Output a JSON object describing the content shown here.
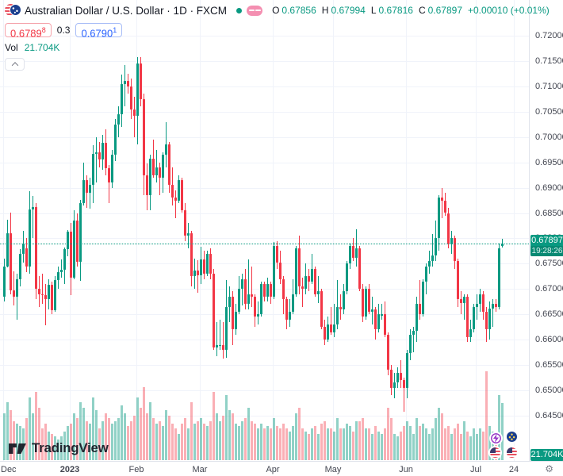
{
  "header": {
    "title": "Australian Dollar / U.S. Dollar · 1D · FXCM",
    "ohlc": {
      "o_label": "O",
      "o": "0.67856",
      "h_label": "H",
      "h": "0.67994",
      "l_label": "L",
      "l": "0.67816",
      "c_label": "C",
      "c": "0.67897",
      "change": "+0.00010 (+0.01%)"
    },
    "bid": {
      "main": "0.6789",
      "sup": "8"
    },
    "spread": "0.3",
    "ask": {
      "main": "0.6790",
      "sup": "1"
    },
    "vol_label": "Vol",
    "vol_value": "21.704K"
  },
  "watermark": "TradingView",
  "price_axis": {
    "last_price": "0.67897",
    "countdown": "19:28:26",
    "volume_badge": "21.704K"
  },
  "colors": {
    "up": "#089981",
    "down": "#f23645",
    "ask": "#2962ff",
    "grid": "#f0f3fa",
    "axis_text": "#434651",
    "vol_up": "rgba(8,153,129,0.45)",
    "vol_down": "rgba(242,54,69,0.4)"
  },
  "chart_data": {
    "type": "candlestick",
    "title": "Australian Dollar / U.S. Dollar",
    "symbol": "AUD/USD",
    "timeframe": "1D",
    "exchange": "FXCM",
    "legend": "Vol",
    "last_price": 0.67897,
    "last_volume": "21.704K",
    "ylim": [
      0.6458,
      0.7158
    ],
    "grid": true,
    "y_ticks": [
      0.72,
      0.715,
      0.71,
      0.705,
      0.7,
      0.695,
      0.69,
      0.685,
      0.68,
      0.675,
      0.67,
      0.665,
      0.66,
      0.655,
      0.65,
      0.645
    ],
    "x_ticks": [
      {
        "label": "Dec",
        "index": 0
      },
      {
        "label": "2023",
        "index": 21,
        "major": true
      },
      {
        "label": "Feb",
        "index": 42
      },
      {
        "label": "Mar",
        "index": 62
      },
      {
        "label": "Apr",
        "index": 85
      },
      {
        "label": "May",
        "index": 104
      },
      {
        "label": "Jun",
        "index": 127
      },
      {
        "label": "Jul",
        "index": 149
      },
      {
        "label": "24",
        "index": 161
      }
    ],
    "candles": [
      [
        0.6685,
        0.676,
        0.6676,
        0.6745,
        18
      ],
      [
        0.6745,
        0.6836,
        0.6742,
        0.681,
        22
      ],
      [
        0.681,
        0.6851,
        0.669,
        0.6698,
        19
      ],
      [
        0.6698,
        0.6735,
        0.6667,
        0.6685,
        15
      ],
      [
        0.6685,
        0.673,
        0.664,
        0.672,
        14
      ],
      [
        0.672,
        0.6778,
        0.6705,
        0.677,
        13
      ],
      [
        0.677,
        0.6815,
        0.6752,
        0.679,
        12
      ],
      [
        0.678,
        0.68,
        0.6733,
        0.6745,
        16
      ],
      [
        0.6745,
        0.6893,
        0.673,
        0.6857,
        24
      ],
      [
        0.6857,
        0.6884,
        0.68,
        0.6862,
        18
      ],
      [
        0.6862,
        0.687,
        0.668,
        0.67,
        26
      ],
      [
        0.67,
        0.6725,
        0.6665,
        0.669,
        20
      ],
      [
        0.669,
        0.673,
        0.667,
        0.6688,
        12
      ],
      [
        0.6688,
        0.671,
        0.6629,
        0.668,
        14
      ],
      [
        0.668,
        0.672,
        0.666,
        0.6708,
        11
      ],
      [
        0.6708,
        0.6715,
        0.665,
        0.6658,
        10
      ],
      [
        0.6658,
        0.6725,
        0.6655,
        0.6718,
        9
      ],
      [
        0.6718,
        0.6745,
        0.67,
        0.6733,
        8
      ],
      [
        0.6733,
        0.6758,
        0.6722,
        0.6738,
        9
      ],
      [
        0.6738,
        0.6782,
        0.671,
        0.6778,
        11
      ],
      [
        0.6778,
        0.6816,
        0.6765,
        0.6813,
        13
      ],
      [
        0.6813,
        0.683,
        0.6688,
        0.6722,
        14
      ],
      [
        0.6722,
        0.6856,
        0.672,
        0.6835,
        18
      ],
      [
        0.6835,
        0.685,
        0.6745,
        0.6754,
        16
      ],
      [
        0.6754,
        0.6876,
        0.6716,
        0.687,
        22
      ],
      [
        0.687,
        0.695,
        0.6865,
        0.6915,
        20
      ],
      [
        0.6915,
        0.6925,
        0.686,
        0.689,
        15
      ],
      [
        0.689,
        0.692,
        0.6858,
        0.6905,
        14
      ],
      [
        0.6905,
        0.6984,
        0.687,
        0.6966,
        24
      ],
      [
        0.6966,
        0.7,
        0.691,
        0.697,
        19
      ],
      [
        0.697,
        0.699,
        0.694,
        0.6955,
        12
      ],
      [
        0.6955,
        0.7005,
        0.6935,
        0.6988,
        15
      ],
      [
        0.6988,
        0.7015,
        0.6925,
        0.6938,
        18
      ],
      [
        0.6938,
        0.6945,
        0.687,
        0.691,
        16
      ],
      [
        0.691,
        0.6975,
        0.69,
        0.6965,
        14
      ],
      [
        0.6965,
        0.7035,
        0.6953,
        0.7025,
        15
      ],
      [
        0.7025,
        0.706,
        0.7,
        0.7045,
        16
      ],
      [
        0.7045,
        0.7124,
        0.702,
        0.7105,
        21
      ],
      [
        0.7105,
        0.7142,
        0.706,
        0.711,
        18
      ],
      [
        0.711,
        0.7125,
        0.7085,
        0.71,
        13
      ],
      [
        0.71,
        0.7115,
        0.7035,
        0.7055,
        15
      ],
      [
        0.7055,
        0.708,
        0.7,
        0.7042,
        17
      ],
      [
        0.7042,
        0.7158,
        0.6985,
        0.7145,
        24
      ],
      [
        0.7145,
        0.7157,
        0.706,
        0.7075,
        20
      ],
      [
        0.7075,
        0.7085,
        0.6885,
        0.6925,
        28
      ],
      [
        0.6925,
        0.6948,
        0.6855,
        0.6885,
        18
      ],
      [
        0.6885,
        0.6965,
        0.6856,
        0.6958,
        22
      ],
      [
        0.6958,
        0.6995,
        0.692,
        0.6925,
        16
      ],
      [
        0.6925,
        0.6975,
        0.691,
        0.694,
        14
      ],
      [
        0.694,
        0.695,
        0.6885,
        0.692,
        15
      ],
      [
        0.692,
        0.697,
        0.689,
        0.6965,
        13
      ],
      [
        0.6965,
        0.703,
        0.694,
        0.6985,
        19
      ],
      [
        0.6985,
        0.699,
        0.689,
        0.6905,
        17
      ],
      [
        0.6905,
        0.694,
        0.6865,
        0.688,
        14
      ],
      [
        0.688,
        0.6895,
        0.684,
        0.6875,
        12
      ],
      [
        0.6875,
        0.6925,
        0.687,
        0.6915,
        10
      ],
      [
        0.6915,
        0.692,
        0.685,
        0.6855,
        14
      ],
      [
        0.6855,
        0.687,
        0.6795,
        0.6805,
        16
      ],
      [
        0.6805,
        0.683,
        0.678,
        0.681,
        12
      ],
      [
        0.681,
        0.6815,
        0.6705,
        0.6725,
        22
      ],
      [
        0.6725,
        0.676,
        0.67,
        0.6737,
        14
      ],
      [
        0.6737,
        0.6757,
        0.6693,
        0.6727,
        15
      ],
      [
        0.6727,
        0.6784,
        0.671,
        0.6758,
        16
      ],
      [
        0.6758,
        0.6775,
        0.672,
        0.673,
        14
      ],
      [
        0.673,
        0.6775,
        0.6725,
        0.677,
        13
      ],
      [
        0.677,
        0.678,
        0.672,
        0.673,
        15
      ],
      [
        0.673,
        0.674,
        0.658,
        0.6585,
        26
      ],
      [
        0.6585,
        0.6635,
        0.6568,
        0.659,
        18
      ],
      [
        0.659,
        0.664,
        0.658,
        0.659,
        15
      ],
      [
        0.659,
        0.6635,
        0.6563,
        0.658,
        17
      ],
      [
        0.658,
        0.6717,
        0.6565,
        0.6665,
        25
      ],
      [
        0.6665,
        0.6705,
        0.6635,
        0.6685,
        19
      ],
      [
        0.6685,
        0.6695,
        0.659,
        0.662,
        18
      ],
      [
        0.662,
        0.667,
        0.661,
        0.6655,
        14
      ],
      [
        0.6655,
        0.6725,
        0.665,
        0.67,
        13
      ],
      [
        0.67,
        0.673,
        0.6667,
        0.672,
        15
      ],
      [
        0.672,
        0.674,
        0.666,
        0.667,
        16
      ],
      [
        0.667,
        0.6758,
        0.666,
        0.669,
        20
      ],
      [
        0.669,
        0.6745,
        0.6665,
        0.6685,
        15
      ],
      [
        0.6685,
        0.669,
        0.6625,
        0.6645,
        14
      ],
      [
        0.6645,
        0.6675,
        0.663,
        0.665,
        12
      ],
      [
        0.665,
        0.6715,
        0.6645,
        0.671,
        14
      ],
      [
        0.671,
        0.6715,
        0.6675,
        0.6685,
        12
      ],
      [
        0.6685,
        0.6722,
        0.6675,
        0.671,
        13
      ],
      [
        0.671,
        0.6715,
        0.667,
        0.6685,
        12
      ],
      [
        0.6685,
        0.6793,
        0.668,
        0.6785,
        16
      ],
      [
        0.6785,
        0.6795,
        0.674,
        0.6752,
        13
      ],
      [
        0.6752,
        0.6775,
        0.671,
        0.672,
        12
      ],
      [
        0.672,
        0.6725,
        0.665,
        0.668,
        14
      ],
      [
        0.668,
        0.6685,
        0.662,
        0.664,
        12
      ],
      [
        0.664,
        0.668,
        0.6625,
        0.6655,
        11
      ],
      [
        0.6655,
        0.672,
        0.665,
        0.669,
        13
      ],
      [
        0.669,
        0.6785,
        0.6685,
        0.678,
        18
      ],
      [
        0.678,
        0.6806,
        0.669,
        0.6705,
        20
      ],
      [
        0.6705,
        0.6722,
        0.6665,
        0.67,
        12
      ],
      [
        0.67,
        0.675,
        0.669,
        0.6725,
        11
      ],
      [
        0.6725,
        0.674,
        0.6695,
        0.6715,
        10
      ],
      [
        0.6715,
        0.677,
        0.671,
        0.674,
        12
      ],
      [
        0.674,
        0.6745,
        0.6685,
        0.669,
        13
      ],
      [
        0.669,
        0.6725,
        0.6672,
        0.6695,
        10
      ],
      [
        0.6695,
        0.67,
        0.662,
        0.6625,
        14
      ],
      [
        0.6625,
        0.664,
        0.659,
        0.66,
        15
      ],
      [
        0.66,
        0.6645,
        0.6595,
        0.663,
        12
      ],
      [
        0.663,
        0.6665,
        0.661,
        0.6615,
        12
      ],
      [
        0.6615,
        0.667,
        0.6605,
        0.663,
        11
      ],
      [
        0.663,
        0.6717,
        0.662,
        0.6665,
        16
      ],
      [
        0.6665,
        0.669,
        0.664,
        0.666,
        12
      ],
      [
        0.666,
        0.671,
        0.665,
        0.6695,
        12
      ],
      [
        0.6695,
        0.6756,
        0.669,
        0.675,
        14
      ],
      [
        0.675,
        0.679,
        0.674,
        0.6785,
        13
      ],
      [
        0.6785,
        0.68,
        0.6755,
        0.6762,
        11
      ],
      [
        0.6762,
        0.6818,
        0.6745,
        0.678,
        15
      ],
      [
        0.678,
        0.6785,
        0.6695,
        0.67,
        15
      ],
      [
        0.67,
        0.671,
        0.6635,
        0.6645,
        16
      ],
      [
        0.6645,
        0.6705,
        0.664,
        0.67,
        12
      ],
      [
        0.67,
        0.671,
        0.665,
        0.6655,
        12
      ],
      [
        0.6655,
        0.6685,
        0.663,
        0.666,
        10
      ],
      [
        0.666,
        0.6665,
        0.66,
        0.662,
        13
      ],
      [
        0.662,
        0.667,
        0.6615,
        0.665,
        11
      ],
      [
        0.665,
        0.667,
        0.664,
        0.665,
        10
      ],
      [
        0.665,
        0.6675,
        0.6605,
        0.661,
        12
      ],
      [
        0.661,
        0.6615,
        0.653,
        0.654,
        20
      ],
      [
        0.654,
        0.655,
        0.649,
        0.6505,
        16
      ],
      [
        0.6505,
        0.6535,
        0.6485,
        0.6515,
        10
      ],
      [
        0.6515,
        0.6545,
        0.6505,
        0.6535,
        9
      ],
      [
        0.6535,
        0.656,
        0.6505,
        0.652,
        11
      ],
      [
        0.652,
        0.6525,
        0.6458,
        0.6505,
        13
      ],
      [
        0.6505,
        0.658,
        0.6485,
        0.6573,
        15
      ],
      [
        0.6573,
        0.662,
        0.656,
        0.661,
        13
      ],
      [
        0.661,
        0.6625,
        0.6575,
        0.6617,
        10
      ],
      [
        0.6617,
        0.6685,
        0.6595,
        0.667,
        16
      ],
      [
        0.667,
        0.6718,
        0.664,
        0.665,
        13
      ],
      [
        0.665,
        0.672,
        0.6645,
        0.6715,
        14
      ],
      [
        0.6715,
        0.675,
        0.669,
        0.6745,
        12
      ],
      [
        0.6745,
        0.6775,
        0.673,
        0.6755,
        10
      ],
      [
        0.6755,
        0.6808,
        0.6745,
        0.6767,
        12
      ],
      [
        0.6767,
        0.6835,
        0.6755,
        0.68,
        16
      ],
      [
        0.68,
        0.6885,
        0.6775,
        0.688,
        20
      ],
      [
        0.688,
        0.69,
        0.684,
        0.6875,
        18
      ],
      [
        0.6875,
        0.689,
        0.6845,
        0.685,
        12
      ],
      [
        0.685,
        0.686,
        0.678,
        0.679,
        13
      ],
      [
        0.679,
        0.6815,
        0.677,
        0.68,
        10
      ],
      [
        0.68,
        0.6805,
        0.674,
        0.6755,
        12
      ],
      [
        0.6755,
        0.676,
        0.6665,
        0.668,
        14
      ],
      [
        0.668,
        0.6695,
        0.665,
        0.6672,
        10
      ],
      [
        0.6672,
        0.669,
        0.664,
        0.6685,
        15
      ],
      [
        0.6685,
        0.669,
        0.6595,
        0.6605,
        11
      ],
      [
        0.6605,
        0.664,
        0.6595,
        0.662,
        9
      ],
      [
        0.662,
        0.667,
        0.6615,
        0.6665,
        12
      ],
      [
        0.6665,
        0.669,
        0.664,
        0.667,
        10
      ],
      [
        0.667,
        0.67,
        0.6655,
        0.669,
        12
      ],
      [
        0.669,
        0.6695,
        0.664,
        0.6655,
        11
      ],
      [
        0.6655,
        0.6665,
        0.6595,
        0.662,
        34
      ],
      [
        0.662,
        0.6675,
        0.66,
        0.6662,
        13
      ],
      [
        0.6662,
        0.668,
        0.6625,
        0.667,
        11
      ],
      [
        0.667,
        0.668,
        0.6655,
        0.6665,
        9
      ],
      [
        0.6665,
        0.679,
        0.666,
        0.678,
        25
      ],
      [
        0.67856,
        0.67994,
        0.67816,
        0.67897,
        21.704
      ]
    ]
  }
}
